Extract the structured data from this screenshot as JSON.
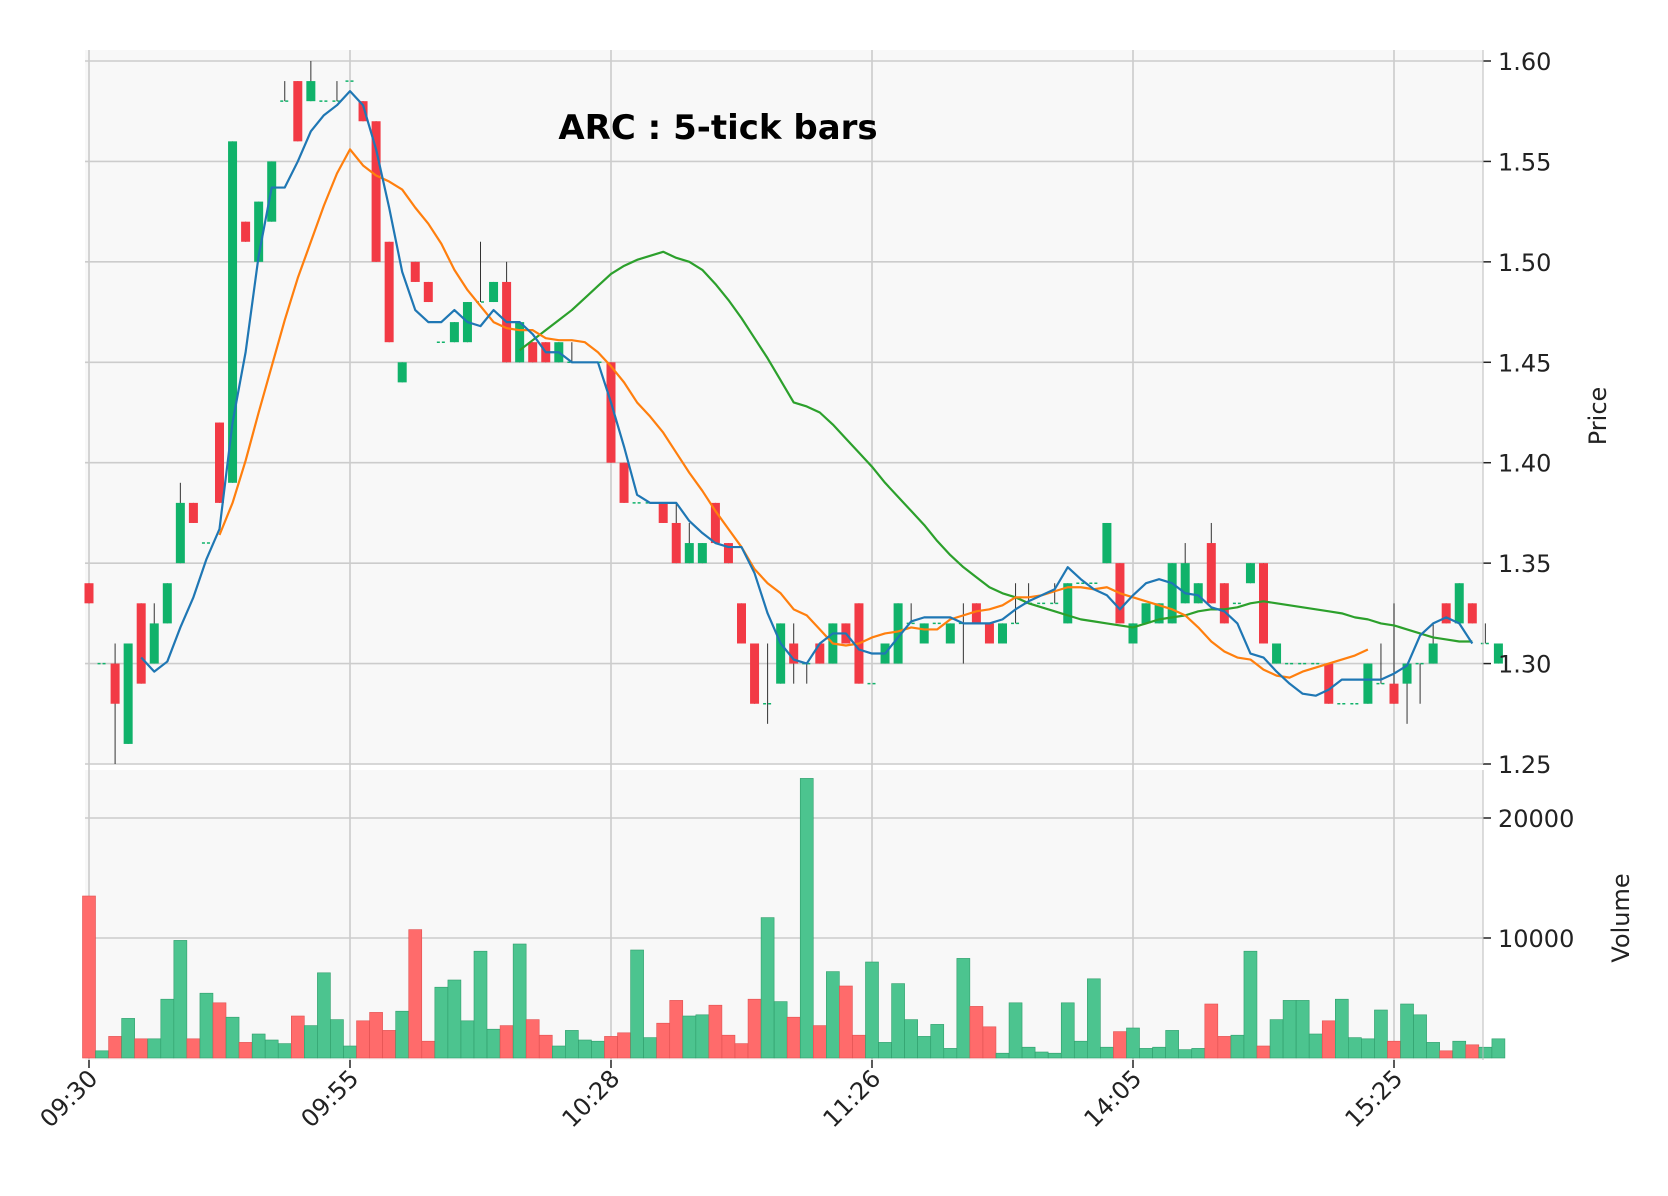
{
  "chart_data": {
    "type": "candlestick",
    "title": "ARC : 5-tick bars",
    "price_axis": {
      "label": "Price",
      "range": [
        1.25,
        1.6
      ],
      "ticks": [
        "1.25",
        "1.30",
        "1.35",
        "1.40",
        "1.45",
        "1.50",
        "1.55",
        "1.60"
      ]
    },
    "volume_axis": {
      "label": "Volume",
      "range": [
        0,
        24000
      ],
      "ticks": [
        "10000",
        "20000"
      ]
    },
    "x_axis": {
      "ticks": [
        {
          "index": 0,
          "label": "09:30"
        },
        {
          "index": 20,
          "label": "09:55"
        },
        {
          "index": 40,
          "label": "10:28"
        },
        {
          "index": 60,
          "label": "11:26"
        },
        {
          "index": 80,
          "label": "14:05"
        },
        {
          "index": 100,
          "label": "15:25"
        }
      ]
    },
    "colors": {
      "up": "#10b26a",
      "down": "#f23a45",
      "volume_up": "#4cc48f",
      "volume_down": "#ff6b6b",
      "ma_fast": "#1f77b4",
      "ma_mid": "#ff7f0e",
      "ma_slow": "#2ca02c",
      "plot_bg": "#f8f8f8",
      "grid": "#cccccc"
    },
    "grid": true,
    "moving_averages": [
      "ma_fast",
      "ma_mid",
      "ma_slow"
    ],
    "candles": [
      [
        1.34,
        1.34,
        1.33,
        1.33,
        13500
      ],
      [
        1.3,
        1.3,
        1.3,
        1.3,
        600
      ],
      [
        1.3,
        1.31,
        1.25,
        1.28,
        1800
      ],
      [
        1.26,
        1.31,
        1.26,
        1.31,
        3300
      ],
      [
        1.33,
        1.33,
        1.29,
        1.29,
        1600
      ],
      [
        1.3,
        1.33,
        1.3,
        1.32,
        1600
      ],
      [
        1.32,
        1.34,
        1.32,
        1.34,
        4900
      ],
      [
        1.35,
        1.39,
        1.35,
        1.38,
        9800
      ],
      [
        1.38,
        1.38,
        1.37,
        1.37,
        1600
      ],
      [
        1.36,
        1.36,
        1.36,
        1.36,
        5400
      ],
      [
        1.42,
        1.42,
        1.38,
        1.38,
        4600
      ],
      [
        1.39,
        1.56,
        1.39,
        1.56,
        3400
      ],
      [
        1.52,
        1.52,
        1.51,
        1.51,
        1300
      ],
      [
        1.5,
        1.53,
        1.5,
        1.53,
        2000
      ],
      [
        1.52,
        1.55,
        1.52,
        1.55,
        1500
      ],
      [
        1.58,
        1.59,
        1.58,
        1.58,
        1200
      ],
      [
        1.59,
        1.59,
        1.56,
        1.56,
        3500
      ],
      [
        1.58,
        1.6,
        1.58,
        1.59,
        2700
      ],
      [
        1.58,
        1.58,
        1.58,
        1.58,
        7100
      ],
      [
        1.58,
        1.59,
        1.58,
        1.58,
        3200
      ],
      [
        1.59,
        1.59,
        1.59,
        1.59,
        1000
      ],
      [
        1.58,
        1.58,
        1.57,
        1.57,
        3100
      ],
      [
        1.57,
        1.57,
        1.5,
        1.5,
        3800
      ],
      [
        1.51,
        1.51,
        1.46,
        1.46,
        2300
      ],
      [
        1.44,
        1.45,
        1.44,
        1.45,
        3900
      ],
      [
        1.5,
        1.5,
        1.49,
        1.49,
        10700
      ],
      [
        1.49,
        1.49,
        1.48,
        1.48,
        1400
      ],
      [
        1.46,
        1.46,
        1.46,
        1.46,
        5900
      ],
      [
        1.46,
        1.47,
        1.46,
        1.47,
        6500
      ],
      [
        1.46,
        1.48,
        1.46,
        1.48,
        3100
      ],
      [
        1.48,
        1.51,
        1.48,
        1.48,
        8900
      ],
      [
        1.48,
        1.49,
        1.48,
        1.49,
        2400
      ],
      [
        1.49,
        1.5,
        1.45,
        1.45,
        2700
      ],
      [
        1.45,
        1.47,
        1.45,
        1.47,
        9500
      ],
      [
        1.46,
        1.46,
        1.45,
        1.45,
        3200
      ],
      [
        1.46,
        1.46,
        1.45,
        1.45,
        1900
      ],
      [
        1.45,
        1.46,
        1.45,
        1.46,
        1000
      ],
      [
        1.45,
        1.46,
        1.45,
        1.45,
        2300
      ],
      [
        1.45,
        1.45,
        1.45,
        1.45,
        1500
      ],
      [
        1.45,
        1.45,
        1.45,
        1.45,
        1400
      ],
      [
        1.45,
        1.45,
        1.4,
        1.4,
        1800
      ],
      [
        1.4,
        1.4,
        1.38,
        1.38,
        2100
      ],
      [
        1.38,
        1.38,
        1.38,
        1.38,
        9000
      ],
      [
        1.38,
        1.38,
        1.38,
        1.38,
        1700
      ],
      [
        1.38,
        1.38,
        1.37,
        1.37,
        2900
      ],
      [
        1.37,
        1.38,
        1.35,
        1.35,
        4800
      ],
      [
        1.35,
        1.37,
        1.35,
        1.36,
        3500
      ],
      [
        1.35,
        1.36,
        1.35,
        1.36,
        3600
      ],
      [
        1.38,
        1.38,
        1.36,
        1.36,
        4400
      ],
      [
        1.36,
        1.36,
        1.35,
        1.35,
        1900
      ],
      [
        1.33,
        1.33,
        1.31,
        1.31,
        1200
      ],
      [
        1.31,
        1.31,
        1.28,
        1.28,
        4900
      ],
      [
        1.28,
        1.31,
        1.27,
        1.28,
        11700
      ],
      [
        1.29,
        1.32,
        1.29,
        1.32,
        4700
      ],
      [
        1.31,
        1.32,
        1.29,
        1.3,
        3400
      ],
      [
        1.3,
        1.3,
        1.29,
        1.3,
        23300
      ],
      [
        1.31,
        1.31,
        1.3,
        1.3,
        2700
      ],
      [
        1.3,
        1.32,
        1.3,
        1.32,
        7200
      ],
      [
        1.32,
        1.32,
        1.31,
        1.31,
        6000
      ],
      [
        1.33,
        1.33,
        1.29,
        1.29,
        1900
      ],
      [
        1.29,
        1.29,
        1.29,
        1.29,
        8000
      ],
      [
        1.3,
        1.31,
        1.3,
        1.31,
        1300
      ],
      [
        1.3,
        1.33,
        1.3,
        1.33,
        6200
      ],
      [
        1.32,
        1.33,
        1.32,
        1.32,
        3200
      ],
      [
        1.31,
        1.32,
        1.31,
        1.32,
        1800
      ],
      [
        1.32,
        1.32,
        1.32,
        1.32,
        2800
      ],
      [
        1.31,
        1.32,
        1.31,
        1.32,
        800
      ],
      [
        1.32,
        1.33,
        1.3,
        1.32,
        8300
      ],
      [
        1.33,
        1.33,
        1.32,
        1.32,
        4300
      ],
      [
        1.32,
        1.32,
        1.31,
        1.31,
        2600
      ],
      [
        1.31,
        1.32,
        1.31,
        1.32,
        400
      ],
      [
        1.32,
        1.34,
        1.32,
        1.32,
        4600
      ],
      [
        1.33,
        1.34,
        1.33,
        1.33,
        900
      ],
      [
        1.33,
        1.33,
        1.33,
        1.33,
        500
      ],
      [
        1.33,
        1.34,
        1.33,
        1.33,
        400
      ],
      [
        1.32,
        1.34,
        1.32,
        1.34,
        4600
      ],
      [
        1.34,
        1.34,
        1.34,
        1.34,
        1400
      ],
      [
        1.34,
        1.34,
        1.34,
        1.34,
        6600
      ],
      [
        1.35,
        1.37,
        1.35,
        1.37,
        900
      ],
      [
        1.35,
        1.35,
        1.32,
        1.32,
        2200
      ],
      [
        1.31,
        1.32,
        1.31,
        1.32,
        2500
      ],
      [
        1.32,
        1.33,
        1.32,
        1.33,
        800
      ],
      [
        1.32,
        1.33,
        1.32,
        1.33,
        900
      ],
      [
        1.32,
        1.35,
        1.32,
        1.35,
        2300
      ],
      [
        1.33,
        1.36,
        1.33,
        1.35,
        700
      ],
      [
        1.33,
        1.34,
        1.33,
        1.34,
        800
      ],
      [
        1.36,
        1.37,
        1.33,
        1.33,
        4500
      ],
      [
        1.34,
        1.34,
        1.32,
        1.32,
        1800
      ],
      [
        1.33,
        1.33,
        1.33,
        1.33,
        1900
      ],
      [
        1.34,
        1.35,
        1.34,
        1.35,
        8900
      ],
      [
        1.35,
        1.35,
        1.31,
        1.31,
        1000
      ],
      [
        1.3,
        1.31,
        1.3,
        1.31,
        3200
      ],
      [
        1.3,
        1.3,
        1.3,
        1.3,
        4800
      ],
      [
        1.3,
        1.3,
        1.3,
        1.3,
        4800
      ],
      [
        1.3,
        1.3,
        1.3,
        1.3,
        2000
      ],
      [
        1.3,
        1.3,
        1.28,
        1.28,
        3100
      ],
      [
        1.28,
        1.28,
        1.28,
        1.28,
        4900
      ],
      [
        1.28,
        1.28,
        1.28,
        1.28,
        1700
      ],
      [
        1.28,
        1.3,
        1.28,
        1.3,
        1600
      ],
      [
        1.29,
        1.31,
        1.29,
        1.29,
        4000
      ],
      [
        1.29,
        1.33,
        1.28,
        1.28,
        1400
      ],
      [
        1.29,
        1.3,
        1.27,
        1.3,
        4500
      ],
      [
        1.3,
        1.3,
        1.28,
        1.3,
        3600
      ],
      [
        1.3,
        1.32,
        1.3,
        1.31,
        1300
      ],
      [
        1.33,
        1.33,
        1.32,
        1.32,
        600
      ],
      [
        1.32,
        1.34,
        1.32,
        1.34,
        1400
      ],
      [
        1.33,
        1.33,
        1.32,
        1.32,
        1100
      ],
      [
        1.31,
        1.32,
        1.31,
        1.31,
        900
      ],
      [
        1.3,
        1.31,
        1.3,
        1.31,
        1600
      ]
    ],
    "ma_fast": [
      null,
      null,
      null,
      null,
      1.303,
      1.296,
      1.301,
      1.318,
      1.333,
      1.352,
      1.367,
      1.42,
      1.455,
      1.503,
      1.537,
      1.537,
      1.55,
      1.565,
      1.573,
      1.578,
      1.585,
      1.578,
      1.556,
      1.527,
      1.495,
      1.476,
      1.47,
      1.47,
      1.476,
      1.47,
      1.468,
      1.476,
      1.47,
      1.47,
      1.464,
      1.455,
      1.455,
      1.45,
      1.45,
      1.45,
      1.43,
      1.408,
      1.384,
      1.38,
      1.38,
      1.38,
      1.371,
      1.365,
      1.36,
      1.358,
      1.358,
      1.345,
      1.325,
      1.31,
      1.302,
      1.3,
      1.31,
      1.315,
      1.315,
      1.307,
      1.305,
      1.305,
      1.313,
      1.321,
      1.323,
      1.323,
      1.323,
      1.32,
      1.32,
      1.32,
      1.322,
      1.327,
      1.331,
      1.334,
      1.337,
      1.348,
      1.342,
      1.337,
      1.334,
      1.327,
      1.334,
      1.34,
      1.342,
      1.34,
      1.335,
      1.334,
      1.328,
      1.326,
      1.32,
      1.305,
      1.303,
      1.296,
      1.29,
      1.285,
      1.284,
      1.287,
      1.292,
      1.292,
      1.292,
      1.292,
      1.295,
      1.299,
      1.314,
      1.32,
      1.323,
      1.32,
      1.31
    ],
    "ma_mid": [
      null,
      null,
      null,
      null,
      null,
      null,
      null,
      null,
      null,
      null,
      1.364,
      1.38,
      1.401,
      1.425,
      1.448,
      1.471,
      1.492,
      1.51,
      1.528,
      1.544,
      1.556,
      1.548,
      1.543,
      1.54,
      1.536,
      1.527,
      1.519,
      1.509,
      1.496,
      1.486,
      1.478,
      1.47,
      1.467,
      1.466,
      1.466,
      1.462,
      1.461,
      1.461,
      1.46,
      1.455,
      1.448,
      1.44,
      1.43,
      1.423,
      1.415,
      1.405,
      1.395,
      1.386,
      1.376,
      1.367,
      1.358,
      1.347,
      1.34,
      1.335,
      1.327,
      1.324,
      1.317,
      1.31,
      1.309,
      1.31,
      1.313,
      1.315,
      1.316,
      1.318,
      1.317,
      1.317,
      1.322,
      1.324,
      1.326,
      1.327,
      1.329,
      1.333,
      1.333,
      1.334,
      1.336,
      1.338,
      1.338,
      1.337,
      1.338,
      1.335,
      1.333,
      1.331,
      1.329,
      1.327,
      1.324,
      1.318,
      1.311,
      1.306,
      1.303,
      1.302,
      1.297,
      1.294,
      1.293,
      1.296,
      1.298,
      1.3,
      1.302,
      1.304,
      1.307
    ],
    "ma_slow": [
      null,
      null,
      null,
      null,
      null,
      null,
      null,
      null,
      null,
      null,
      null,
      null,
      null,
      null,
      null,
      null,
      null,
      null,
      null,
      null,
      null,
      null,
      null,
      null,
      null,
      null,
      null,
      null,
      null,
      null,
      null,
      null,
      null,
      1.456,
      1.461,
      1.466,
      1.471,
      1.476,
      1.482,
      1.488,
      1.494,
      1.498,
      1.501,
      1.503,
      1.505,
      1.502,
      1.5,
      1.496,
      1.489,
      1.481,
      1.472,
      1.462,
      1.452,
      1.441,
      1.43,
      1.428,
      1.425,
      1.419,
      1.412,
      1.405,
      1.398,
      1.39,
      1.383,
      1.376,
      1.369,
      1.361,
      1.354,
      1.348,
      1.343,
      1.338,
      1.335,
      1.333,
      1.33,
      1.328,
      1.326,
      1.324,
      1.322,
      1.321,
      1.32,
      1.319,
      1.318,
      1.32,
      1.322,
      1.323,
      1.324,
      1.326,
      1.327,
      1.327,
      1.328,
      1.33,
      1.331,
      1.33,
      1.329,
      1.328,
      1.327,
      1.326,
      1.325,
      1.323,
      1.322,
      1.32,
      1.319,
      1.317,
      1.315,
      1.313,
      1.312,
      1.311,
      1.311
    ]
  }
}
